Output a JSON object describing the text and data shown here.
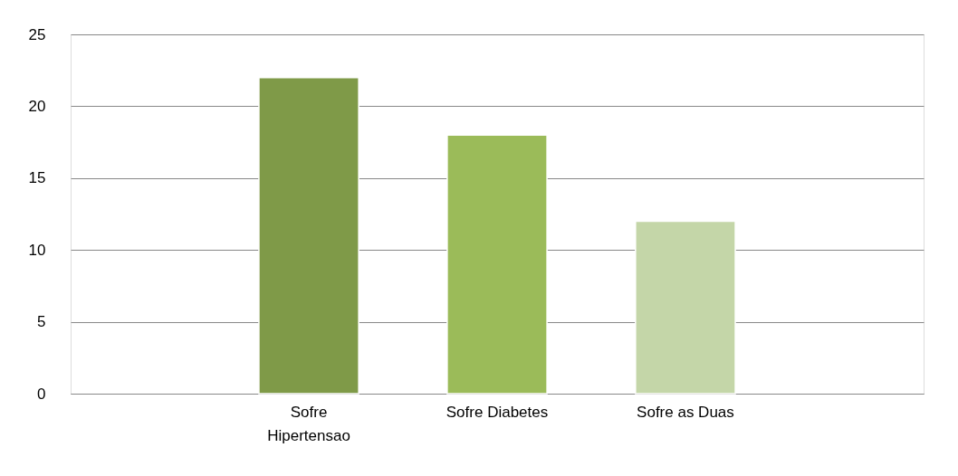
{
  "chart_data": {
    "type": "bar",
    "categories": [
      "Sofre Hipertensao",
      "Sofre Diabetes",
      "Sofre as Duas"
    ],
    "values": [
      22,
      18,
      12
    ],
    "colors": [
      "#7f9a48",
      "#9bbb59",
      "#c4d6a8"
    ],
    "ylim": [
      0,
      25
    ],
    "yticks": [
      0,
      5,
      10,
      15,
      20,
      25
    ],
    "grid": "y"
  }
}
